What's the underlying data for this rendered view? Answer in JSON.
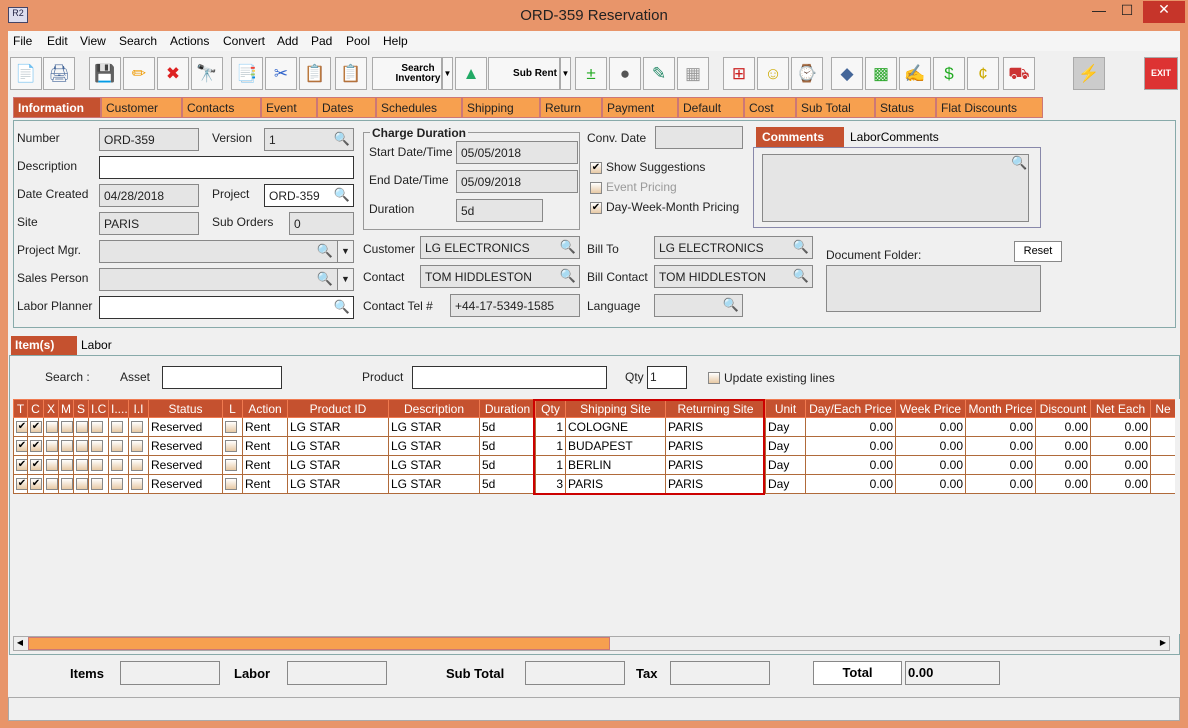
{
  "window": {
    "title": "ORD-359 Reservation",
    "app_icon": "R2",
    "minimize": "—",
    "maximize": "☐",
    "close": "✕"
  },
  "menu": [
    "File",
    "Edit",
    "View",
    "Search",
    "Actions",
    "Convert",
    "Add",
    "Pad",
    "Pool",
    "Help"
  ],
  "toolbar": {
    "search_inventory": "Search Inventory",
    "sub_rent": "Sub Rent",
    "exit": "EXIT",
    "icons": [
      "new-document-icon",
      "print-icon",
      "save-icon",
      "edit-pencil-icon",
      "delete-x-icon",
      "binoculars-icon",
      "copy-order-icon",
      "cut-scissors-icon",
      "copy-icon",
      "paste-icon"
    ]
  },
  "tabs": [
    "Information",
    "Customer",
    "Contacts",
    "Event",
    "Dates",
    "Schedules",
    "Shipping",
    "Return",
    "Payment",
    "Default",
    "Cost",
    "Sub Total",
    "Status",
    "Flat Discounts"
  ],
  "info": {
    "number_label": "Number",
    "number": "ORD-359",
    "version_label": "Version",
    "version": "1",
    "description_label": "Description",
    "description": "",
    "date_created_label": "Date Created",
    "date_created": "04/28/2018",
    "project_label": "Project",
    "project": "ORD-359",
    "site_label": "Site",
    "site": "PARIS",
    "sub_orders_label": "Sub Orders",
    "sub_orders": "0",
    "project_mgr_label": "Project Mgr.",
    "sales_person_label": "Sales Person",
    "labor_planner_label": "Labor Planner",
    "charge_duration_label": "Charge Duration",
    "start_label": "Start Date/Time",
    "start": "05/05/2018",
    "end_label": "End Date/Time",
    "end": "05/09/2018",
    "duration_label": "Duration",
    "duration": "5d",
    "conv_date_label": "Conv. Date",
    "show_suggestions": "Show Suggestions",
    "event_pricing": "Event Pricing",
    "dwm_pricing": "Day-Week-Month Pricing",
    "customer_label": "Customer",
    "customer": "LG ELECTRONICS",
    "contact_label": "Contact",
    "contact": "TOM HIDDLESTON",
    "contact_tel_label": "Contact Tel #",
    "contact_tel": "+44-17-5349-1585",
    "bill_to_label": "Bill To",
    "bill_to": "LG ELECTRONICS",
    "bill_contact_label": "Bill Contact",
    "bill_contact": "TOM HIDDLESTON",
    "language_label": "Language",
    "comments_tab": "Comments",
    "labor_comments_tab": "LaborComments",
    "document_folder_label": "Document Folder:",
    "reset": "Reset"
  },
  "items_tabs": [
    "Item(s)",
    "Labor"
  ],
  "search": {
    "label": "Search :",
    "asset_label": "Asset",
    "product_label": "Product",
    "qty_label": "Qty",
    "qty": "1",
    "update_existing": "Update existing lines"
  },
  "grid": {
    "columns": [
      "T",
      "C",
      "X",
      "M",
      "S",
      "I.C",
      "I....",
      "I.I",
      "Status",
      "L",
      "Action",
      "Product ID",
      "Description",
      "Duration",
      "Qty",
      "Shipping Site",
      "Returning Site",
      "Unit",
      "Day/Each Price",
      "Week Price",
      "Month Price",
      "Discount",
      "Net Each",
      "Ne"
    ],
    "rows": [
      {
        "status": "Reserved",
        "action": "Rent",
        "product_id": "LG STAR",
        "description": "LG STAR",
        "duration": "5d",
        "qty": "1",
        "shipping_site": "COLOGNE",
        "returning_site": "PARIS",
        "unit": "Day",
        "day": "0.00",
        "week": "0.00",
        "month": "0.00",
        "discount": "0.00",
        "net_each": "0.00"
      },
      {
        "status": "Reserved",
        "action": "Rent",
        "product_id": "LG STAR",
        "description": "LG STAR",
        "duration": "5d",
        "qty": "1",
        "shipping_site": "BUDAPEST",
        "returning_site": "PARIS",
        "unit": "Day",
        "day": "0.00",
        "week": "0.00",
        "month": "0.00",
        "discount": "0.00",
        "net_each": "0.00"
      },
      {
        "status": "Reserved",
        "action": "Rent",
        "product_id": "LG STAR",
        "description": "LG STAR",
        "duration": "5d",
        "qty": "1",
        "shipping_site": "BERLIN",
        "returning_site": "PARIS",
        "unit": "Day",
        "day": "0.00",
        "week": "0.00",
        "month": "0.00",
        "discount": "0.00",
        "net_each": "0.00"
      },
      {
        "status": "Reserved",
        "action": "Rent",
        "product_id": "LG STAR",
        "description": "LG STAR",
        "duration": "5d",
        "qty": "3",
        "shipping_site": "PARIS",
        "returning_site": "PARIS",
        "unit": "Day",
        "day": "0.00",
        "week": "0.00",
        "month": "0.00",
        "discount": "0.00",
        "net_each": "0.00"
      }
    ]
  },
  "totals": {
    "items_label": "Items",
    "labor_label": "Labor",
    "sub_total_label": "Sub Total",
    "tax_label": "Tax",
    "total_label": "Total",
    "total": "0.00"
  },
  "colors": {
    "accent": "#c5512f",
    "tab": "#f7a04f",
    "frame": "#e8956a",
    "highlight": "#cc0000"
  }
}
